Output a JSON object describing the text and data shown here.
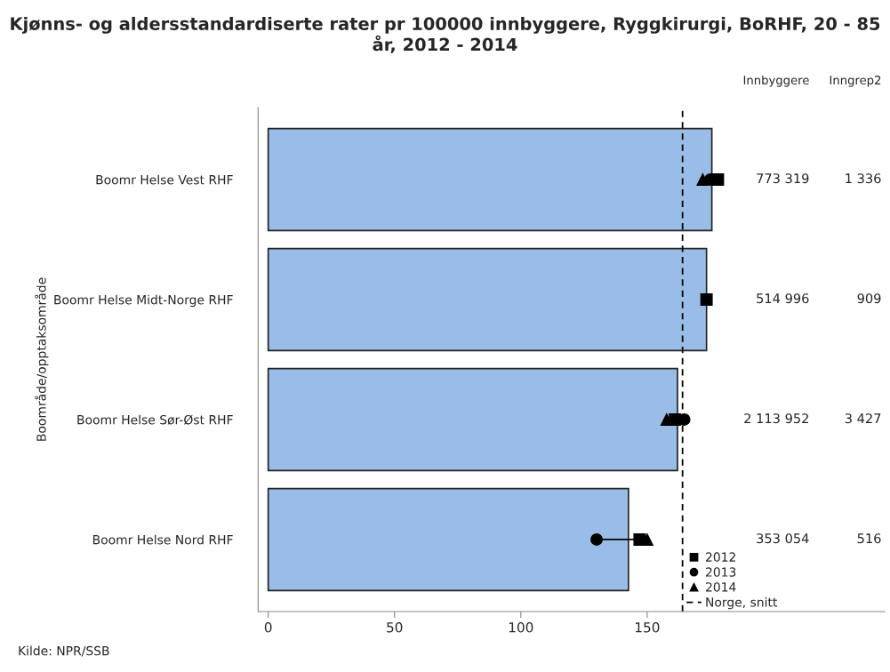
{
  "chart_data": {
    "type": "bar",
    "orientation": "horizontal",
    "title": "Kjønns- og aldersstandardiserte rater pr 100000 innbyggere, Ryggkirurgi, BoRHF, 20 - 85 år, 2012 - 2014",
    "ylabel": "Boområde/opptaksområde",
    "categories": [
      "Boomr Helse Vest RHF",
      "Boomr Helse Midt-Norge RHF",
      "Boomr Helse Sør-Øst RHF",
      "Boomr Helse Nord RHF"
    ],
    "series": [
      {
        "color": "#99bde6",
        "values": [
          175.6,
          173.5,
          162,
          142.6
        ]
      },
      {
        "type": "scatter",
        "name": "2012",
        "marker": "square",
        "color": "#000000",
        "values": [
          178,
          173.5,
          161,
          147
        ]
      },
      {
        "type": "scatter",
        "name": "2013",
        "marker": "circle",
        "color": "#000000",
        "values": [
          175,
          null,
          164.7,
          130
        ]
      },
      {
        "type": "scatter",
        "name": "2014",
        "marker": "triangle",
        "color": "#000000",
        "values": [
          172,
          null,
          157.7,
          150
        ]
      }
    ],
    "xlim": [
      -4,
      244
    ],
    "xticks": [
      0,
      50,
      100,
      150
    ],
    "ref_lines": [
      {
        "axis": "x",
        "value": 164,
        "label": "Norge, snitt",
        "color": "#000000",
        "line_style": "dashed"
      }
    ],
    "legend": "bottom right",
    "grid": false,
    "annotations": [
      "Innbyggere",
      "Inngrep2",
      "773 319",
      "1 336",
      "514 996",
      "909",
      "2 113 952",
      "3 427",
      "353 054",
      "516",
      "Kilde: NPR/SSB"
    ]
  }
}
